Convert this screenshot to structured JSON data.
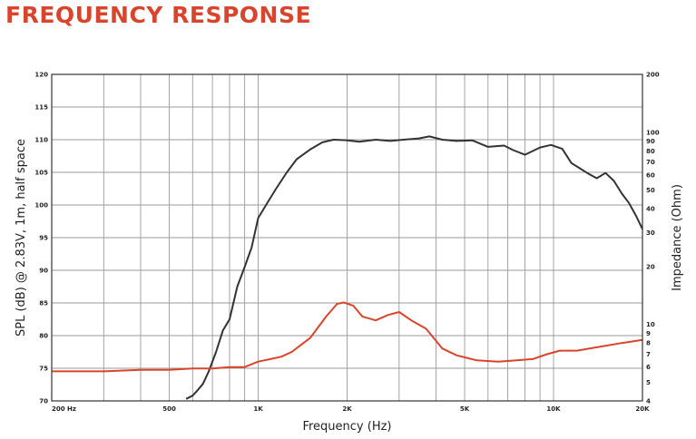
{
  "title": "FREQUENCY RESPONSE",
  "chart_data": {
    "type": "line",
    "xlabel": "Frequency (Hz)",
    "ylabel": "SPL (dB) @ 2.83V, 1m, half space",
    "y2label": "Impedance (Ohm)",
    "x_scale": "log",
    "y2_scale": "log",
    "xlim": [
      200,
      20000
    ],
    "ylim": [
      70,
      120
    ],
    "y2lim": [
      4,
      200
    ],
    "grid": true,
    "x_ticks": [
      {
        "value": 200,
        "label": "200  Hz"
      },
      {
        "value": 500,
        "label": "500"
      },
      {
        "value": 1000,
        "label": "1K"
      },
      {
        "value": 2000,
        "label": "2K"
      },
      {
        "value": 5000,
        "label": "5K"
      },
      {
        "value": 10000,
        "label": "10K"
      },
      {
        "value": 20000,
        "label": "20K"
      }
    ],
    "y_ticks": [
      70,
      75,
      80,
      85,
      90,
      95,
      100,
      105,
      110,
      115,
      120
    ],
    "y2_ticks": [
      4,
      5,
      6,
      7,
      8,
      9,
      10,
      20,
      30,
      40,
      50,
      60,
      70,
      80,
      90,
      100,
      200
    ],
    "colors": {
      "spl": "#333333",
      "impedance": "#d9452c",
      "grid": "#9a9a9a"
    },
    "series": [
      {
        "axis": "left",
        "x": [
          570,
          600,
          620,
          650,
          680,
          720,
          760,
          800,
          850,
          900,
          950,
          1000,
          1080,
          1150,
          1250,
          1350,
          1500,
          1650,
          1800,
          2000,
          2200,
          2500,
          2800,
          3100,
          3500,
          3800,
          4200,
          4700,
          5300,
          6000,
          6800,
          7300,
          8000,
          9000,
          9800,
          10700,
          11500,
          12200,
          13000,
          14000,
          15000,
          16000,
          17000,
          18000,
          19000,
          20000
        ],
        "values": [
          70.3,
          70.8,
          71.5,
          72.6,
          74.5,
          77.5,
          80.8,
          82.5,
          87.5,
          90.5,
          93.5,
          98,
          100.5,
          102.5,
          105,
          107,
          108.5,
          109.6,
          110,
          109.9,
          109.7,
          110,
          109.8,
          110,
          110.2,
          110.5,
          110,
          109.8,
          109.9,
          108.9,
          109.1,
          108.4,
          107.7,
          108.8,
          109.2,
          108.6,
          106.4,
          105.7,
          104.9,
          104.1,
          104.9,
          103.7,
          101.8,
          100.3,
          98.4,
          96.3
        ]
      },
      {
        "axis": "right",
        "x": [
          200,
          300,
          400,
          500,
          600,
          700,
          800,
          900,
          1000,
          1100,
          1200,
          1300,
          1500,
          1700,
          1850,
          1950,
          2100,
          2250,
          2500,
          2750,
          3000,
          3300,
          3700,
          4200,
          4700,
          5500,
          6500,
          7500,
          8500,
          9500,
          10500,
          12000,
          14000,
          17000,
          20000
        ],
        "values": [
          5.7,
          5.7,
          5.8,
          5.8,
          5.9,
          5.9,
          6.0,
          6.0,
          6.4,
          6.6,
          6.8,
          7.2,
          8.5,
          11,
          12.8,
          13,
          12.5,
          11,
          10.5,
          11.2,
          11.6,
          10.5,
          9.5,
          7.5,
          6.9,
          6.5,
          6.4,
          6.5,
          6.6,
          7.0,
          7.3,
          7.3,
          7.6,
          8.0,
          8.3
        ]
      }
    ]
  }
}
